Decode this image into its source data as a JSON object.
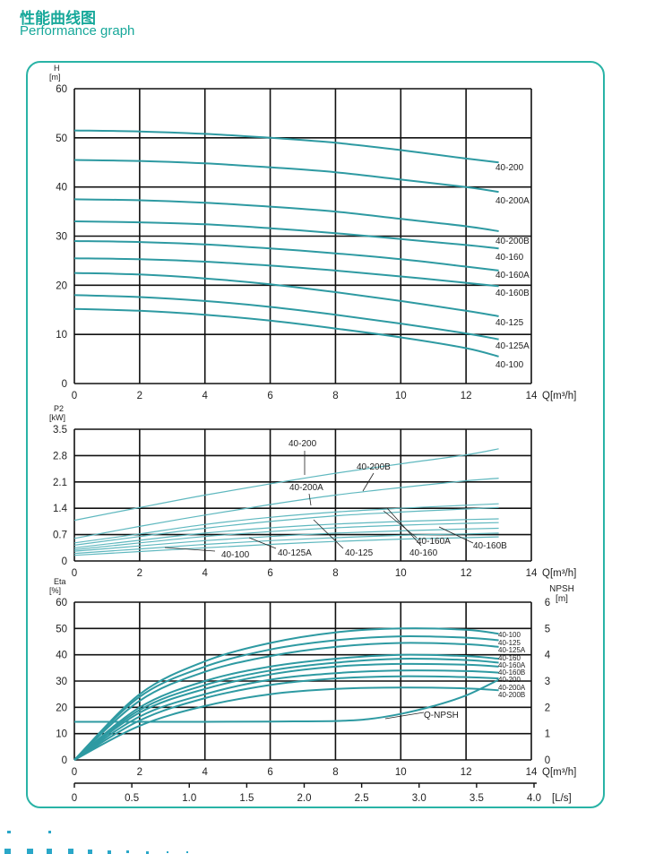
{
  "header": {
    "title_cn": "性能曲线图",
    "title_en": "Performance graph"
  },
  "colors": {
    "accent": "#17a89a",
    "frame": "#29b3a6",
    "curve": "#2e9aa2",
    "curve_light": "#5fb8bf",
    "grid": "#111111",
    "dots": "#2aa7c8"
  },
  "chart_data": [
    {
      "type": "line",
      "ylabel": "H",
      "yunit": "[m]",
      "xlabel": "Q[m³/h]",
      "xlim": [
        0,
        14
      ],
      "ylim": [
        0,
        60
      ],
      "xticks": [
        "0",
        "2",
        "4",
        "6",
        "8",
        "10",
        "12",
        "14"
      ],
      "yticks": [
        "0",
        "10",
        "20",
        "30",
        "40",
        "50",
        "60"
      ],
      "grid": true,
      "series": [
        {
          "name": "40-200",
          "x": [
            0,
            2,
            4,
            6,
            8,
            10,
            12,
            13
          ],
          "values": [
            51.5,
            51.3,
            50.8,
            50,
            49,
            47.5,
            45.8,
            45
          ]
        },
        {
          "name": "40-200A",
          "x": [
            0,
            2,
            4,
            6,
            8,
            10,
            12,
            13
          ],
          "values": [
            45.5,
            45.3,
            44.8,
            44,
            43,
            41.5,
            40,
            39
          ]
        },
        {
          "name": "40-200B",
          "x": [
            0,
            2,
            4,
            6,
            8,
            10,
            12,
            13
          ],
          "values": [
            37.5,
            37.3,
            36.8,
            36,
            35,
            33.5,
            32,
            31
          ]
        },
        {
          "name": "40-160",
          "x": [
            0,
            2,
            4,
            6,
            8,
            10,
            12,
            13
          ],
          "values": [
            33,
            32.8,
            32.4,
            31.6,
            30.6,
            29.4,
            28.2,
            27.5
          ]
        },
        {
          "name": "40-160A",
          "x": [
            0,
            2,
            4,
            6,
            8,
            10,
            12,
            13
          ],
          "values": [
            29,
            28.8,
            28.3,
            27.5,
            26.5,
            25.3,
            23.8,
            23
          ]
        },
        {
          "name": "40-160B",
          "x": [
            0,
            2,
            4,
            6,
            8,
            10,
            12,
            13
          ],
          "values": [
            25.5,
            25.3,
            24.8,
            24,
            23,
            21.8,
            20.5,
            19.8
          ]
        },
        {
          "name": "40-125",
          "x": [
            0,
            2,
            4,
            6,
            8,
            10,
            12,
            13
          ],
          "values": [
            22.5,
            22.2,
            21.4,
            20.2,
            18.6,
            16.8,
            14.8,
            13.7
          ]
        },
        {
          "name": "40-125A",
          "x": [
            0,
            2,
            4,
            6,
            8,
            10,
            12,
            13
          ],
          "values": [
            18,
            17.6,
            16.8,
            15.6,
            14,
            12.2,
            10.2,
            9
          ]
        },
        {
          "name": "40-100",
          "x": [
            0,
            2,
            4,
            6,
            8,
            10,
            12,
            13
          ],
          "values": [
            15.2,
            14.8,
            14,
            12.8,
            11.2,
            9.4,
            7.2,
            5.5
          ]
        }
      ]
    },
    {
      "type": "line",
      "ylabel": "P2",
      "yunit": "[kW]",
      "xlabel": "Q[m³/h]",
      "xlim": [
        0,
        14
      ],
      "ylim": [
        0,
        3.5
      ],
      "xticks": [
        "0",
        "2",
        "4",
        "6",
        "8",
        "10",
        "12",
        "14"
      ],
      "yticks": [
        "0",
        "0.7",
        "1.4",
        "2.1",
        "2.8",
        "3.5"
      ],
      "grid": true,
      "series": [
        {
          "name": "40-200",
          "x": [
            0,
            2,
            4,
            6,
            8,
            10,
            12,
            13
          ],
          "values": [
            1.08,
            1.42,
            1.75,
            2.05,
            2.33,
            2.58,
            2.82,
            2.98
          ]
        },
        {
          "name": "40-200A",
          "x": [
            0,
            2,
            4,
            6,
            8,
            10,
            12,
            13
          ],
          "values": [
            0.6,
            0.92,
            1.22,
            1.5,
            1.75,
            1.95,
            2.13,
            2.2
          ]
        },
        {
          "name": "40-200B",
          "x": [
            0,
            2,
            4,
            6,
            8,
            10,
            12,
            13
          ],
          "values": [
            0.48,
            0.72,
            0.97,
            1.16,
            1.3,
            1.4,
            1.48,
            1.52
          ]
        },
        {
          "name": "40-160",
          "x": [
            0,
            2,
            4,
            6,
            8,
            10,
            12,
            13
          ],
          "values": [
            0.42,
            0.65,
            0.87,
            1.05,
            1.2,
            1.3,
            1.38,
            1.42
          ]
        },
        {
          "name": "40-160A",
          "x": [
            0,
            2,
            4,
            6,
            8,
            10,
            12,
            13
          ],
          "values": [
            0.35,
            0.55,
            0.74,
            0.88,
            0.98,
            1.05,
            1.1,
            1.12
          ]
        },
        {
          "name": "40-160B",
          "x": [
            0,
            2,
            4,
            6,
            8,
            10,
            12,
            13
          ],
          "values": [
            0.3,
            0.48,
            0.65,
            0.78,
            0.88,
            0.95,
            1,
            1.02
          ]
        },
        {
          "name": "40-125",
          "x": [
            0,
            2,
            4,
            6,
            8,
            10,
            12,
            13
          ],
          "values": [
            0.26,
            0.4,
            0.54,
            0.65,
            0.74,
            0.8,
            0.85,
            0.87
          ]
        },
        {
          "name": "40-125A",
          "x": [
            0,
            2,
            4,
            6,
            8,
            10,
            12,
            13
          ],
          "values": [
            0.2,
            0.32,
            0.44,
            0.54,
            0.62,
            0.68,
            0.72,
            0.74
          ]
        },
        {
          "name": "40-100",
          "x": [
            0,
            2,
            4,
            6,
            8,
            10,
            12,
            13
          ],
          "values": [
            0.15,
            0.25,
            0.35,
            0.44,
            0.52,
            0.58,
            0.62,
            0.64
          ]
        }
      ]
    },
    {
      "type": "line",
      "ylabel": "Eta",
      "yunit": "[%]",
      "y2label": "NPSH",
      "y2unit": "[m]",
      "xlabel": "Q[m³/h]",
      "x2label": "[L/s]",
      "xlim": [
        0,
        14
      ],
      "ylim": [
        0,
        60
      ],
      "y2lim": [
        0,
        6
      ],
      "xticks": [
        "0",
        "2",
        "4",
        "6",
        "8",
        "10",
        "12",
        "14"
      ],
      "x2ticks": [
        "0",
        "0.5",
        "1.0",
        "1.5",
        "2.0",
        "2.5",
        "3.0",
        "3.5",
        "4.0"
      ],
      "yticks": [
        "0",
        "10",
        "20",
        "30",
        "40",
        "50",
        "60"
      ],
      "y2ticks": [
        "0",
        "1",
        "2",
        "3",
        "4",
        "5",
        "6"
      ],
      "grid": true,
      "series": [
        {
          "name": "40-100",
          "x": [
            0,
            2,
            4,
            6,
            8,
            10,
            12,
            13
          ],
          "values": [
            0,
            25,
            37.5,
            44.5,
            48.5,
            50,
            49.5,
            48
          ]
        },
        {
          "name": "40-125",
          "x": [
            0,
            2,
            4,
            6,
            8,
            10,
            12,
            13
          ],
          "values": [
            0,
            24,
            35.5,
            42,
            45.5,
            47,
            46.5,
            45.5
          ]
        },
        {
          "name": "40-125A",
          "x": [
            0,
            2,
            4,
            6,
            8,
            10,
            12,
            13
          ],
          "values": [
            0,
            22.5,
            33.5,
            39.5,
            43,
            44.5,
            44,
            43
          ]
        },
        {
          "name": "40-160",
          "x": [
            0,
            2,
            4,
            6,
            8,
            10,
            12,
            13
          ],
          "values": [
            0,
            20,
            30,
            35.5,
            38.5,
            40,
            39.5,
            38.5
          ]
        },
        {
          "name": "40-160A",
          "x": [
            0,
            2,
            4,
            6,
            8,
            10,
            12,
            13
          ],
          "values": [
            0,
            19,
            28.5,
            34,
            37,
            38.5,
            38,
            37
          ]
        },
        {
          "name": "40-160B",
          "x": [
            0,
            2,
            4,
            6,
            8,
            10,
            12,
            13
          ],
          "values": [
            0,
            18,
            27,
            32.5,
            35.5,
            36.5,
            36.2,
            35.5
          ]
        },
        {
          "name": "40-200",
          "x": [
            0,
            2,
            4,
            6,
            8,
            10,
            12,
            13
          ],
          "values": [
            0,
            16.5,
            25,
            30.5,
            33,
            34,
            33.8,
            33.2
          ]
        },
        {
          "name": "40-200A",
          "x": [
            0,
            2,
            4,
            6,
            8,
            10,
            12,
            13
          ],
          "values": [
            0,
            15,
            23.5,
            28.5,
            31,
            31.8,
            31.5,
            31
          ]
        },
        {
          "name": "40-200B",
          "x": [
            0,
            2,
            4,
            6,
            8,
            10,
            12,
            13
          ],
          "values": [
            0,
            13,
            20.5,
            25,
            27,
            27.5,
            27.2,
            26.5
          ]
        },
        {
          "name": "Q-NPSH",
          "axis": "y2",
          "x": [
            0,
            2,
            4,
            6,
            8,
            9,
            10,
            11,
            12,
            13
          ],
          "values": [
            1.45,
            1.45,
            1.45,
            1.46,
            1.48,
            1.55,
            1.75,
            2.05,
            2.45,
            3.05
          ]
        }
      ]
    }
  ]
}
